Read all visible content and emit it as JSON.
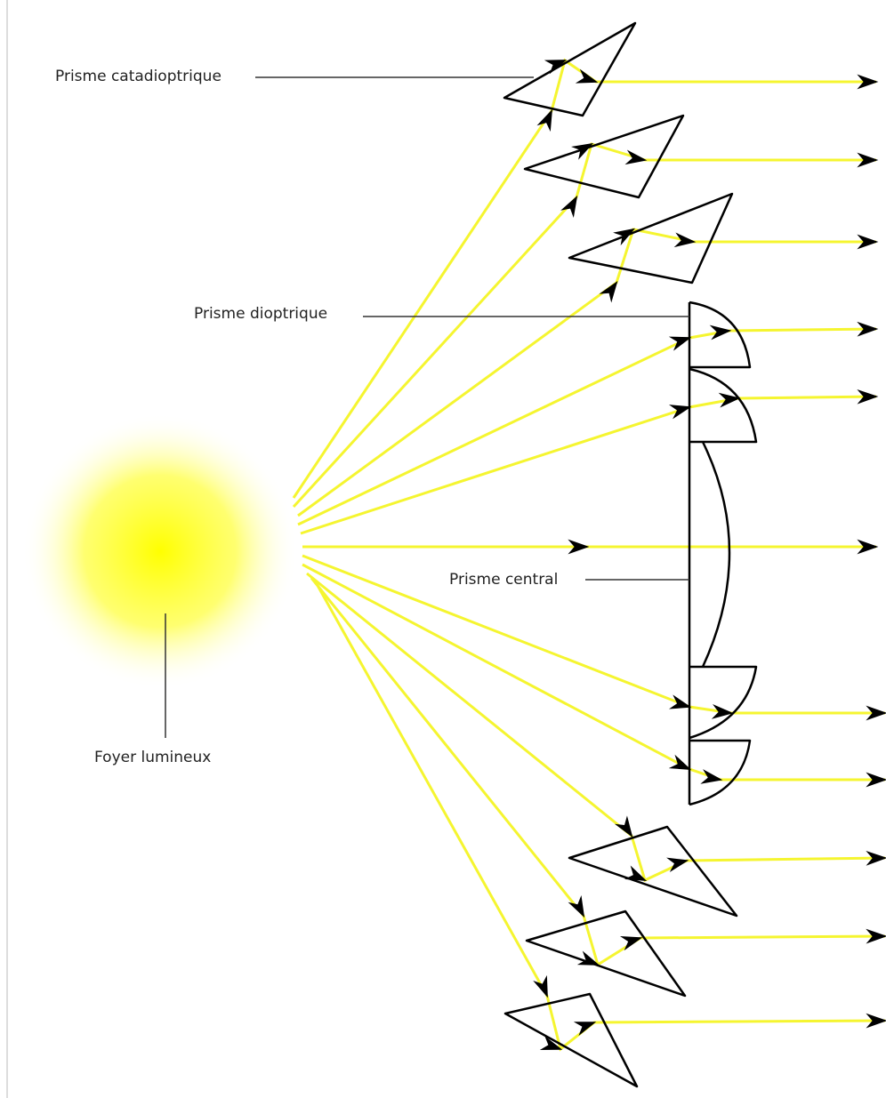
{
  "labels": {
    "catadioptric": "Prisme  catadioptrique",
    "dioptric": "Prisme  dioptrique",
    "central": "Prisme  central",
    "source": "Foyer lumineux"
  }
}
